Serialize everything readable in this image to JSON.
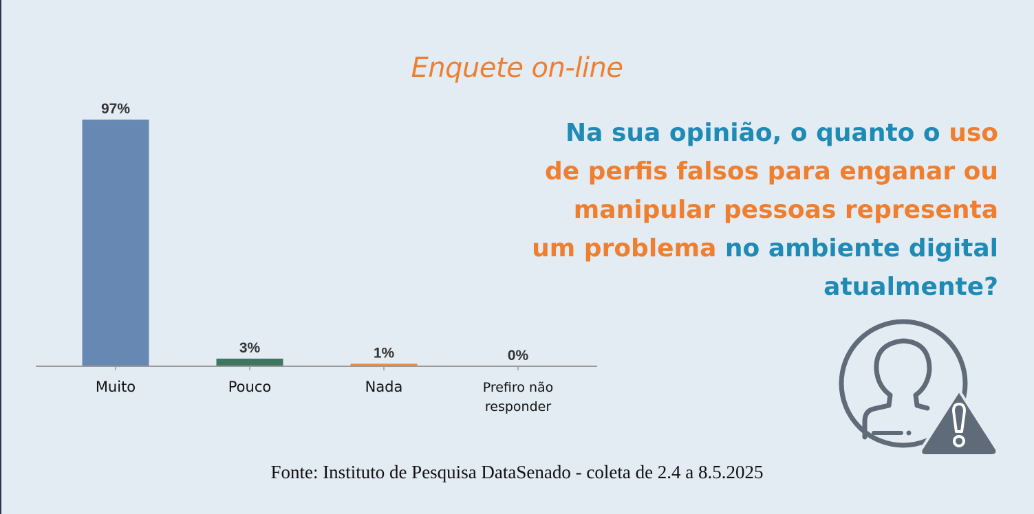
{
  "colors": {
    "background": "#e3ebf3",
    "orange": "#ef7f2f",
    "blue": "#1f8bb5",
    "icon_gray": "#5f6b78"
  },
  "header": {
    "subtitle": "Enquete on-line"
  },
  "question": {
    "segments": [
      {
        "text": "Na sua opinião, o quanto o ",
        "color": "blue"
      },
      {
        "text": "uso de perfis falsos para enganar ou manipular pessoas representa um problema",
        "color": "orange"
      },
      {
        "text": " no ambiente digital atualmente?",
        "color": "blue"
      }
    ]
  },
  "icon": {
    "name": "user-warning-icon"
  },
  "chart_data": {
    "type": "bar",
    "categories": [
      "Muito",
      "Pouco",
      "Nada",
      "Prefiro não responder"
    ],
    "category_lines": [
      [
        "Muito"
      ],
      [
        "Pouco"
      ],
      [
        "Nada"
      ],
      [
        "Prefiro não",
        "responder"
      ]
    ],
    "values": [
      97,
      3,
      1,
      0
    ],
    "value_labels": [
      "97%",
      "3%",
      "1%",
      "0%"
    ],
    "colors": [
      "#6688b2",
      "#3f7662",
      "#ef8a3c",
      "#8a8a8a"
    ],
    "ylim": [
      0,
      100
    ],
    "grid": false,
    "legend": "none",
    "title": "",
    "xlabel": "",
    "ylabel": ""
  },
  "footer": {
    "source": "Fonte: Instituto de Pesquisa DataSenado - coleta de 2.4 a 8.5.2025"
  }
}
